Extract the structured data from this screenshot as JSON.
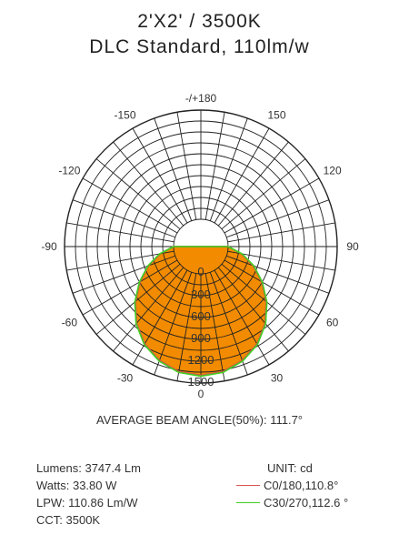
{
  "title_line1": "2'X2' / 3500K",
  "title_line2": "DLC Standard, 110lm/w",
  "chart_data": {
    "type": "polar",
    "angle_labels": [
      {
        "angle": 180,
        "text": "-/+180"
      },
      {
        "angle": 150,
        "text": "150"
      },
      {
        "angle": -150,
        "text": "-150"
      },
      {
        "angle": 120,
        "text": "120"
      },
      {
        "angle": -120,
        "text": "-120"
      },
      {
        "angle": 90,
        "text": "90"
      },
      {
        "angle": -90,
        "text": "-90"
      },
      {
        "angle": 60,
        "text": "60"
      },
      {
        "angle": -60,
        "text": "-60"
      },
      {
        "angle": 30,
        "text": "30"
      },
      {
        "angle": -30,
        "text": "-30"
      },
      {
        "angle": 0,
        "text": "0"
      }
    ],
    "radial_ticks": [
      {
        "value": 0,
        "text": "0"
      },
      {
        "value": 300,
        "text": "300"
      },
      {
        "value": 600,
        "text": "600"
      },
      {
        "value": 900,
        "text": "900"
      },
      {
        "value": 1200,
        "text": "1200"
      },
      {
        "value": 1500,
        "text": "1500"
      }
    ],
    "r_max": 1500,
    "series": [
      {
        "name": "C0/180,110.8°",
        "color": "#d9534f",
        "fill": "#f28b00",
        "angles": [
          -90,
          -80,
          -70,
          -60,
          -50,
          -40,
          -30,
          -20,
          -10,
          0,
          10,
          20,
          30,
          40,
          50,
          60,
          70,
          80,
          90
        ],
        "values": [
          0,
          190,
          390,
          590,
          800,
          1000,
          1170,
          1290,
          1370,
          1395,
          1370,
          1290,
          1170,
          1000,
          800,
          590,
          390,
          190,
          0
        ]
      },
      {
        "name": "C30/270,112.6 °",
        "color": "#44cc22",
        "fill": "#f28b00",
        "angles": [
          -90,
          -80,
          -70,
          -60,
          -50,
          -40,
          -30,
          -20,
          -10,
          0,
          10,
          20,
          30,
          40,
          50,
          60,
          70,
          80,
          90
        ],
        "values": [
          0,
          200,
          400,
          600,
          810,
          1010,
          1180,
          1300,
          1380,
          1405,
          1380,
          1300,
          1180,
          1010,
          810,
          600,
          400,
          200,
          0
        ]
      }
    ]
  },
  "beam_angle": "AVERAGE BEAM ANGLE(50%): 111.7°",
  "specs": {
    "lumens": "Lumens: 3747.4 Lm",
    "watts": "Watts: 33.80 W",
    "lpw": "LPW: 110.86 Lm/W",
    "cct": "CCT: 3500K"
  },
  "legend": {
    "unit": "UNIT: cd"
  }
}
